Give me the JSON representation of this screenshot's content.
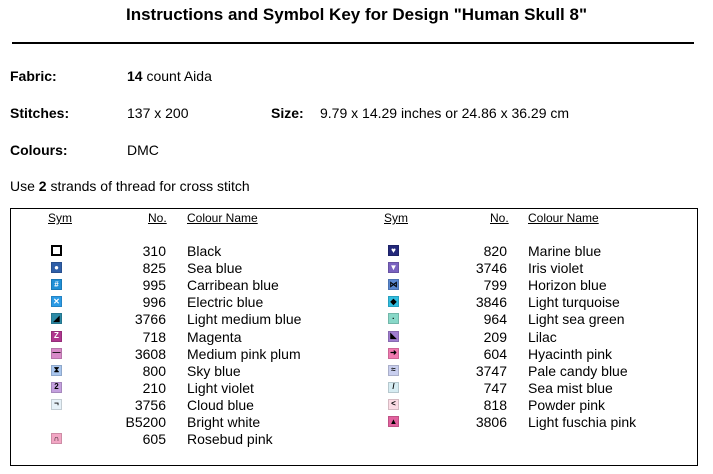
{
  "title": "Instructions and Symbol Key for Design \"Human Skull 8\"",
  "fabric": {
    "label": "Fabric:",
    "count": "14",
    "unit": "count Aida"
  },
  "stitches": {
    "label": "Stitches:",
    "value": "137 x 200"
  },
  "size": {
    "label": "Size:",
    "value": "9.79 x 14.29 inches or 24.86 x 36.29 cm"
  },
  "colours": {
    "label": "Colours:",
    "value": "DMC"
  },
  "strands": {
    "prefix": "Use",
    "count": "2",
    "suffix": "strands of thread for cross stitch"
  },
  "key": {
    "headers": {
      "sym": "Sym",
      "no": "No.",
      "name": "Colour Name"
    },
    "left": [
      {
        "no": "310",
        "name": "Black",
        "glyph": "",
        "bg": "#ffffff",
        "fg": "#000000",
        "icon": "open-square-icon"
      },
      {
        "no": "825",
        "name": "Sea blue",
        "glyph": "●",
        "bg": "#2f5fa8",
        "fg": "#ffffff",
        "icon": "circle-icon"
      },
      {
        "no": "995",
        "name": "Carribean blue",
        "glyph": "#",
        "bg": "#1f8fd6",
        "fg": "#ffffff",
        "icon": "hash-icon"
      },
      {
        "no": "996",
        "name": "Electric blue",
        "glyph": "✕",
        "bg": "#2b9be6",
        "fg": "#ffffff",
        "icon": "cross-icon"
      },
      {
        "no": "3766",
        "name": "Light medium blue",
        "glyph": "◢",
        "bg": "#2c8aa6",
        "fg": "#000000",
        "icon": "triangle-icon"
      },
      {
        "no": "718",
        "name": "Magenta",
        "glyph": "Z",
        "bg": "#b0358f",
        "fg": "#ffffff",
        "icon": "z-icon"
      },
      {
        "no": "3608",
        "name": "Medium pink plum",
        "glyph": "—",
        "bg": "#d88ac8",
        "fg": "#000000",
        "icon": "dash-icon"
      },
      {
        "no": "800",
        "name": "Sky blue",
        "glyph": "⧗",
        "bg": "#a9c6ee",
        "fg": "#000000",
        "icon": "hourglass-icon"
      },
      {
        "no": "210",
        "name": "Light violet",
        "glyph": "2",
        "bg": "#c4a0de",
        "fg": "#000000",
        "icon": "two-icon"
      },
      {
        "no": "3756",
        "name": "Cloud blue",
        "glyph": "¬",
        "bg": "#e6f1f8",
        "fg": "#000000",
        "icon": "corner-icon"
      },
      {
        "no": "B5200",
        "name": "Bright white",
        "glyph": "",
        "bg": "#ffffff",
        "fg": "#ffffff",
        "icon": "blank-icon"
      },
      {
        "no": "605",
        "name": "Rosebud pink",
        "glyph": "∩",
        "bg": "#f2a6c4",
        "fg": "#000000",
        "icon": "arch-icon"
      }
    ],
    "right": [
      {
        "no": "820",
        "name": "Marine blue",
        "glyph": "♥",
        "bg": "#23287a",
        "fg": "#ffffff",
        "icon": "heart-icon"
      },
      {
        "no": "3746",
        "name": "Iris violet",
        "glyph": "▼",
        "bg": "#7a62c0",
        "fg": "#ffffff",
        "icon": "down-triangle-icon"
      },
      {
        "no": "799",
        "name": "Horizon blue",
        "glyph": "⋈",
        "bg": "#5a88d0",
        "fg": "#000000",
        "icon": "bowtie-icon"
      },
      {
        "no": "3846",
        "name": "Light turquoise",
        "glyph": "◆",
        "bg": "#2fbde0",
        "fg": "#000000",
        "icon": "diamond-icon"
      },
      {
        "no": "964",
        "name": "Light sea green",
        "glyph": "·",
        "bg": "#88d8c8",
        "fg": "#000000",
        "icon": "dot-icon"
      },
      {
        "no": "209",
        "name": "Lilac",
        "glyph": "◣",
        "bg": "#a07ed0",
        "fg": "#000000",
        "icon": "corner-triangle-icon"
      },
      {
        "no": "604",
        "name": "Hyacinth pink",
        "glyph": "➜",
        "bg": "#f07ab0",
        "fg": "#000000",
        "icon": "arrow-icon"
      },
      {
        "no": "3747",
        "name": "Pale candy blue",
        "glyph": "≈",
        "bg": "#c8ceee",
        "fg": "#000000",
        "icon": "waves-icon"
      },
      {
        "no": "747",
        "name": "Sea mist blue",
        "glyph": "/",
        "bg": "#d6ecf2",
        "fg": "#000000",
        "icon": "slash-icon"
      },
      {
        "no": "818",
        "name": "Powder pink",
        "glyph": "<",
        "bg": "#fbdbe4",
        "fg": "#000000",
        "icon": "less-than-icon"
      },
      {
        "no": "3806",
        "name": "Light fuschia pink",
        "glyph": "▲",
        "bg": "#e2619e",
        "fg": "#000000",
        "icon": "up-triangle-icon"
      }
    ]
  }
}
